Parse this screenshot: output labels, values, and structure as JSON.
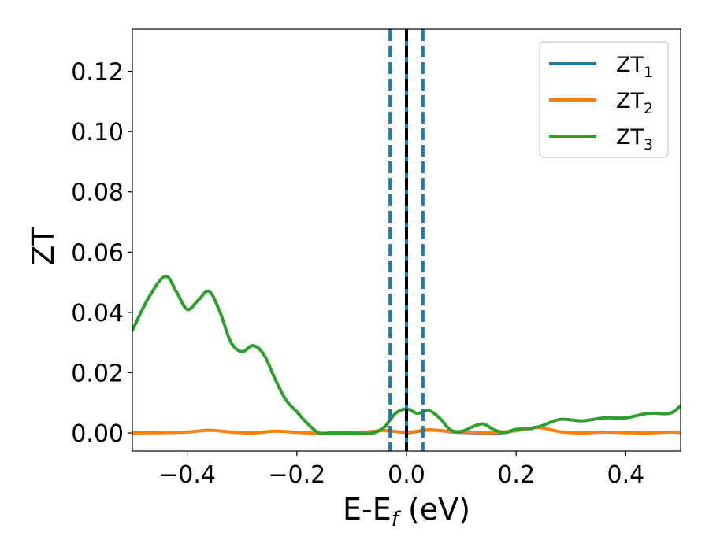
{
  "chart_data": {
    "type": "line",
    "xlabel": "E-E",
    "xlabel_sub": "f",
    "xlabel_unit": " (eV)",
    "ylabel": "ZT",
    "xlim": [
      -0.5,
      0.5
    ],
    "ylim": [
      -0.006,
      0.134
    ],
    "grid": false,
    "legend_position": "top-right",
    "x_ticks": [
      -0.4,
      -0.2,
      0.0,
      0.2,
      0.4
    ],
    "x_tick_labels": [
      "−0.4",
      "−0.2",
      "0.0",
      "0.2",
      "0.4"
    ],
    "y_ticks": [
      0.0,
      0.02,
      0.04,
      0.06,
      0.08,
      0.1,
      0.12
    ],
    "y_tick_labels": [
      "0.00",
      "0.02",
      "0.04",
      "0.06",
      "0.08",
      "0.10",
      "0.12"
    ],
    "vertical_lines": [
      {
        "x": -0.03,
        "style": "dashed",
        "color": "#1f77b4"
      },
      {
        "x": 0.0,
        "style": "solid",
        "color": "#1f77b4"
      },
      {
        "x": 0.0,
        "style": "dashed",
        "color": "#000000"
      },
      {
        "x": 0.03,
        "style": "dashed",
        "color": "#1f77b4"
      }
    ],
    "series": [
      {
        "name": "ZT",
        "name_sub": "1",
        "color": "#1f77b4",
        "x": [
          0.0,
          0.02,
          0.04,
          0.06,
          0.08,
          0.1,
          0.13,
          0.16,
          0.18,
          0.2,
          0.23
        ],
        "y": [
          0.0,
          0.0005,
          0.001,
          0.0008,
          0.0004,
          0.0002,
          0.0,
          -0.0001,
          0.0002,
          0.0008,
          0.0015
        ]
      },
      {
        "name": "ZT",
        "name_sub": "2",
        "color": "#ff7f0e",
        "x": [
          -0.5,
          -0.45,
          -0.4,
          -0.36,
          -0.32,
          -0.28,
          -0.24,
          -0.2,
          -0.16,
          -0.12,
          -0.08,
          -0.04,
          0.0,
          0.04,
          0.08,
          0.12,
          0.16,
          0.2,
          0.24,
          0.28,
          0.32,
          0.36,
          0.4,
          0.44,
          0.48,
          0.5
        ],
        "y": [
          0.0,
          0.0001,
          0.0003,
          0.0009,
          0.0003,
          0.0,
          0.0006,
          0.0002,
          -0.0001,
          0.0,
          0.0002,
          0.0008,
          0.0002,
          0.001,
          0.0005,
          0.0002,
          0.0001,
          0.0008,
          0.0018,
          0.0004,
          0.0,
          0.0003,
          0.0001,
          0.0,
          0.0003,
          0.0001
        ]
      },
      {
        "name": "ZT",
        "name_sub": "3",
        "color": "#2ca02c",
        "x": [
          -0.5,
          -0.47,
          -0.44,
          -0.42,
          -0.4,
          -0.38,
          -0.36,
          -0.34,
          -0.32,
          -0.3,
          -0.28,
          -0.26,
          -0.24,
          -0.22,
          -0.2,
          -0.18,
          -0.16,
          -0.14,
          -0.12,
          -0.1,
          -0.08,
          -0.06,
          -0.04,
          -0.02,
          0.0,
          0.02,
          0.04,
          0.06,
          0.08,
          0.1,
          0.12,
          0.14,
          0.16,
          0.18,
          0.2,
          0.24,
          0.28,
          0.32,
          0.36,
          0.4,
          0.44,
          0.48,
          0.5
        ],
        "y": [
          0.034,
          0.045,
          0.052,
          0.047,
          0.041,
          0.044,
          0.047,
          0.04,
          0.03,
          0.027,
          0.029,
          0.026,
          0.018,
          0.011,
          0.007,
          0.003,
          0.0,
          0.0,
          0.0,
          0.0,
          -0.0001,
          0.0,
          0.002,
          0.0065,
          0.008,
          0.0065,
          0.0075,
          0.005,
          0.001,
          0.0005,
          0.002,
          0.003,
          0.001,
          0.0002,
          0.0012,
          0.002,
          0.0045,
          0.004,
          0.005,
          0.005,
          0.0065,
          0.0065,
          0.009
        ]
      }
    ]
  }
}
